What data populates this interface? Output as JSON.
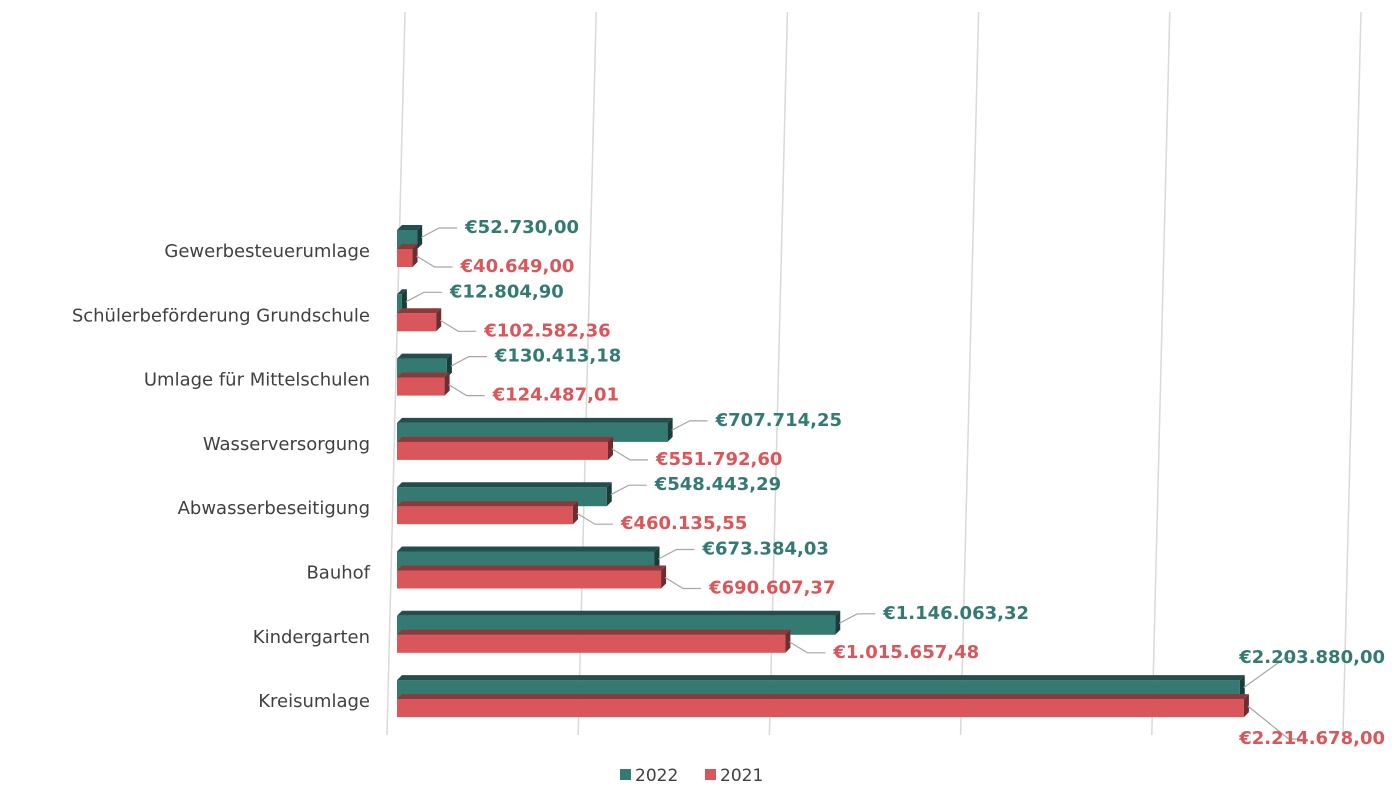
{
  "chart_data": {
    "type": "bar",
    "orientation": "horizontal",
    "categories": [
      "Gewerbesteuerumlage",
      "Schülerbeförderung Grundschule",
      "Umlage für Mittelschulen",
      "Wasserversorgung",
      "Abwasserbeseitigung",
      "Bauhof",
      "Kindergarten",
      "Kreisumlage"
    ],
    "series": [
      {
        "name": "2022",
        "color": "#357a72",
        "values": [
          52730.0,
          12804.9,
          130413.18,
          707714.25,
          548443.29,
          673384.03,
          1146063.32,
          2203880.0
        ],
        "value_labels": [
          "€52.730,00",
          "€12.804,90",
          "€130.413,18",
          "€707.714,25",
          "€548.443,29",
          "€673.384,03",
          "€1.146.063,32",
          "€2.203.880,00"
        ]
      },
      {
        "name": "2021",
        "color": "#d9575a",
        "values": [
          40649.0,
          102582.36,
          124487.01,
          551792.6,
          460135.55,
          690607.37,
          1015657.48,
          2214678.0
        ],
        "value_labels": [
          "€40.649,00",
          "€102.582,36",
          "€124.487,01",
          "€551.792,60",
          "€460.135,55",
          "€690.607,37",
          "€1.015.657,48",
          "€2.214.678,00"
        ]
      }
    ],
    "xlim": [
      0,
      2500000
    ],
    "xticks": [
      0,
      500000,
      1000000,
      1500000,
      2000000,
      2500000
    ],
    "grid": true,
    "legend": "bottom"
  }
}
